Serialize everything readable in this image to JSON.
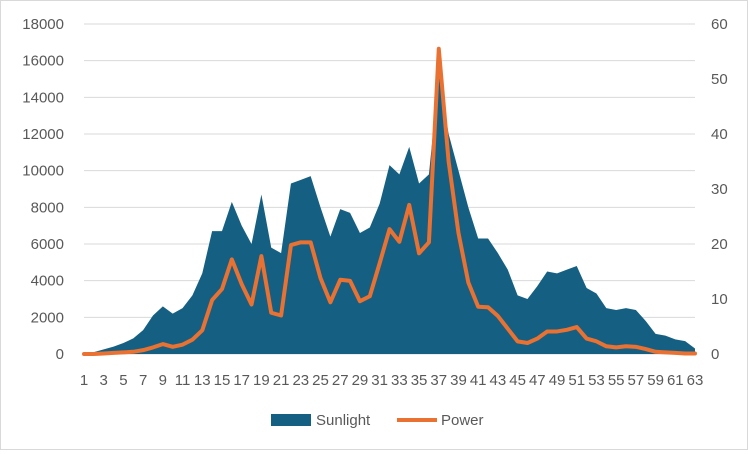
{
  "chart_data": {
    "type": "area+line",
    "title": "",
    "xlabel": "",
    "ylabel": "",
    "ylim": [
      0,
      18000
    ],
    "y2lim": [
      0,
      60
    ],
    "yticks": [
      "0",
      "2000",
      "4000",
      "6000",
      "8000",
      "10000",
      "12000",
      "14000",
      "16000",
      "18000"
    ],
    "y2ticks": [
      "0",
      "10",
      "20",
      "30",
      "40",
      "50",
      "60"
    ],
    "grid": true,
    "legend_position": "bottom",
    "x": [
      1,
      2,
      3,
      4,
      5,
      6,
      7,
      8,
      9,
      10,
      11,
      12,
      13,
      14,
      15,
      16,
      17,
      18,
      19,
      20,
      21,
      22,
      23,
      24,
      25,
      26,
      27,
      28,
      29,
      30,
      31,
      32,
      33,
      34,
      35,
      36,
      37,
      38,
      39,
      40,
      41,
      42,
      43,
      44,
      45,
      46,
      47,
      48,
      49,
      50,
      51,
      52,
      53,
      54,
      55,
      56,
      57,
      58,
      59,
      60,
      61,
      62,
      63
    ],
    "x_tick_labels": [
      "1",
      "3",
      "5",
      "7",
      "9",
      "11",
      "13",
      "15",
      "17",
      "19",
      "21",
      "23",
      "25",
      "27",
      "29",
      "31",
      "33",
      "35",
      "37",
      "39",
      "41",
      "43",
      "45",
      "47",
      "49",
      "51",
      "53",
      "55",
      "57",
      "59",
      "61",
      "63"
    ],
    "series": [
      {
        "name": "Sunlight",
        "type": "area",
        "axis": "left",
        "color": "#156082",
        "values": [
          0,
          100,
          250,
          400,
          600,
          850,
          1300,
          2100,
          2600,
          2200,
          2500,
          3200,
          4400,
          6700,
          6700,
          8300,
          7000,
          6000,
          8700,
          5800,
          5500,
          9300,
          9500,
          9700,
          8000,
          6400,
          7900,
          7700,
          6600,
          6900,
          8200,
          10300,
          9800,
          11300,
          9300,
          9800,
          15200,
          12000,
          10000,
          8000,
          6300,
          6300,
          5500,
          4600,
          3200,
          3000,
          3700,
          4500,
          4400,
          4600,
          4800,
          3600,
          3300,
          2500,
          2400,
          2500,
          2400,
          1800,
          1100,
          1000,
          800,
          700,
          300
        ]
      },
      {
        "name": "Power",
        "type": "line",
        "axis": "right",
        "color": "#e97132",
        "values": [
          0,
          0,
          0.1,
          0.2,
          0.3,
          0.4,
          0.7,
          1.2,
          1.8,
          1.3,
          1.7,
          2.6,
          4.3,
          9.8,
          11.8,
          17.2,
          12.7,
          9.0,
          17.8,
          7.5,
          7.0,
          19.8,
          20.3,
          20.3,
          13.8,
          9.4,
          13.5,
          13.3,
          9.6,
          10.5,
          16.5,
          22.7,
          20.4,
          27.1,
          18.3,
          20.3,
          55.5,
          35.0,
          22.0,
          13.0,
          8.6,
          8.5,
          6.9,
          4.6,
          2.3,
          2.0,
          2.8,
          4.1,
          4.1,
          4.4,
          4.9,
          2.8,
          2.3,
          1.4,
          1.2,
          1.4,
          1.3,
          0.9,
          0.4,
          0.3,
          0.2,
          0.1,
          0.1
        ]
      }
    ]
  }
}
